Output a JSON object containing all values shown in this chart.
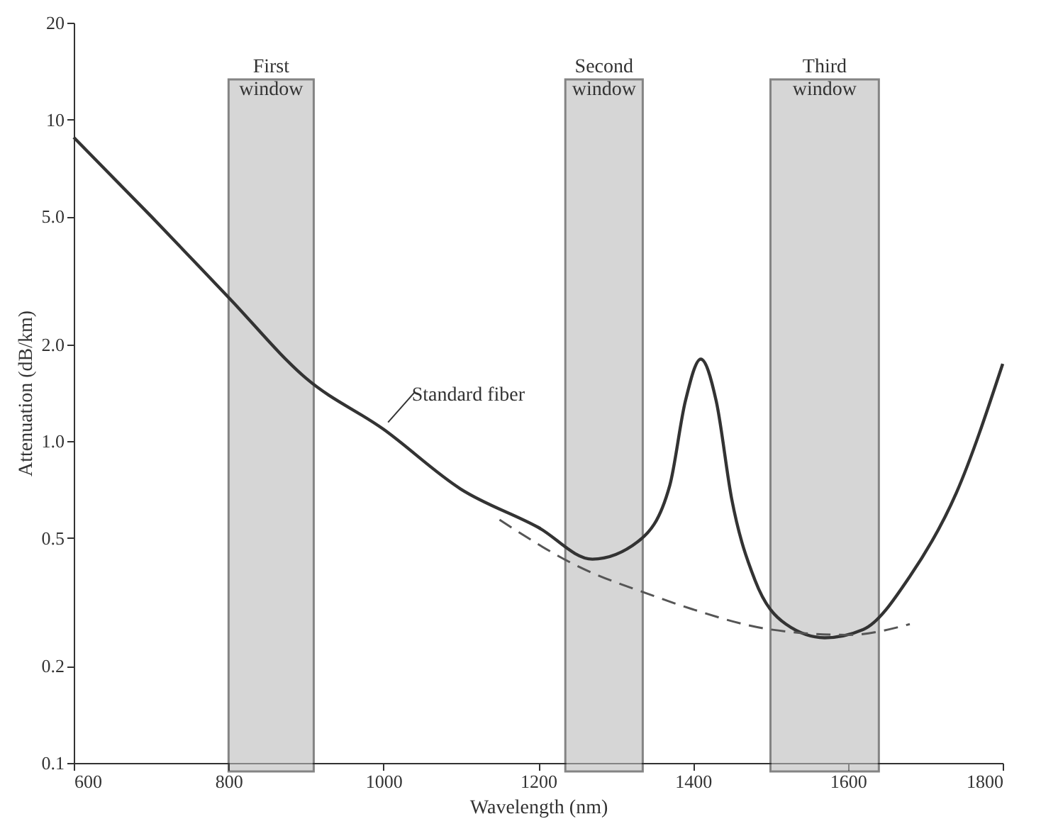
{
  "chart_data": {
    "type": "line",
    "xlabel": "Wavelength (nm)",
    "ylabel": "Attenuation (dB/km)",
    "log": "y",
    "grid": false,
    "marker": "none",
    "xlim": [
      600,
      1800
    ],
    "xticks": [
      600,
      800,
      1000,
      1200,
      1400,
      1600,
      1800
    ],
    "ylim": [
      0.1,
      20
    ],
    "yticks": [
      {
        "value": 0.1,
        "label": "0.1"
      },
      {
        "value": 0.2,
        "label": "0.2"
      },
      {
        "value": 0.5,
        "label": "0.5"
      },
      {
        "value": 1,
        "label": "1.0"
      },
      {
        "value": 2,
        "label": "2.0"
      },
      {
        "value": 5,
        "label": "5.0"
      },
      10,
      20
    ],
    "series": [
      {
        "name": "Standard fiber",
        "color": "#333333",
        "line_style": "solid",
        "x": [
          600,
          700,
          800,
          900,
          1000,
          1100,
          1200,
          1270,
          1330,
          1370,
          1390,
          1410,
          1430,
          1450,
          1480,
          1520,
          1570,
          1620,
          1680,
          1740,
          1800
        ],
        "values": [
          8.8,
          5.0,
          2.8,
          1.57,
          1.09,
          0.71,
          0.54,
          0.43,
          0.49,
          0.73,
          1.33,
          1.8,
          1.33,
          0.66,
          0.37,
          0.27,
          0.245,
          0.26,
          0.38,
          0.69,
          1.74
        ]
      },
      {
        "color": "#555555",
        "line_style": "dashed",
        "x": [
          1150,
          1250,
          1350,
          1400,
          1500,
          1600,
          1680
        ],
        "values": [
          0.57,
          0.41,
          0.33,
          0.3,
          0.26,
          0.25,
          0.27
        ]
      }
    ],
    "bands": [
      {
        "axis": "x",
        "from": 800,
        "to": 910,
        "label": "First window",
        "color": "#bbbbbb"
      },
      {
        "axis": "x",
        "from": 1235,
        "to": 1335,
        "label": "Second window",
        "color": "#bbbbbb"
      },
      {
        "axis": "x",
        "from": 1500,
        "to": 1640,
        "label": "Third window",
        "color": "#bbbbbb"
      }
    ]
  }
}
